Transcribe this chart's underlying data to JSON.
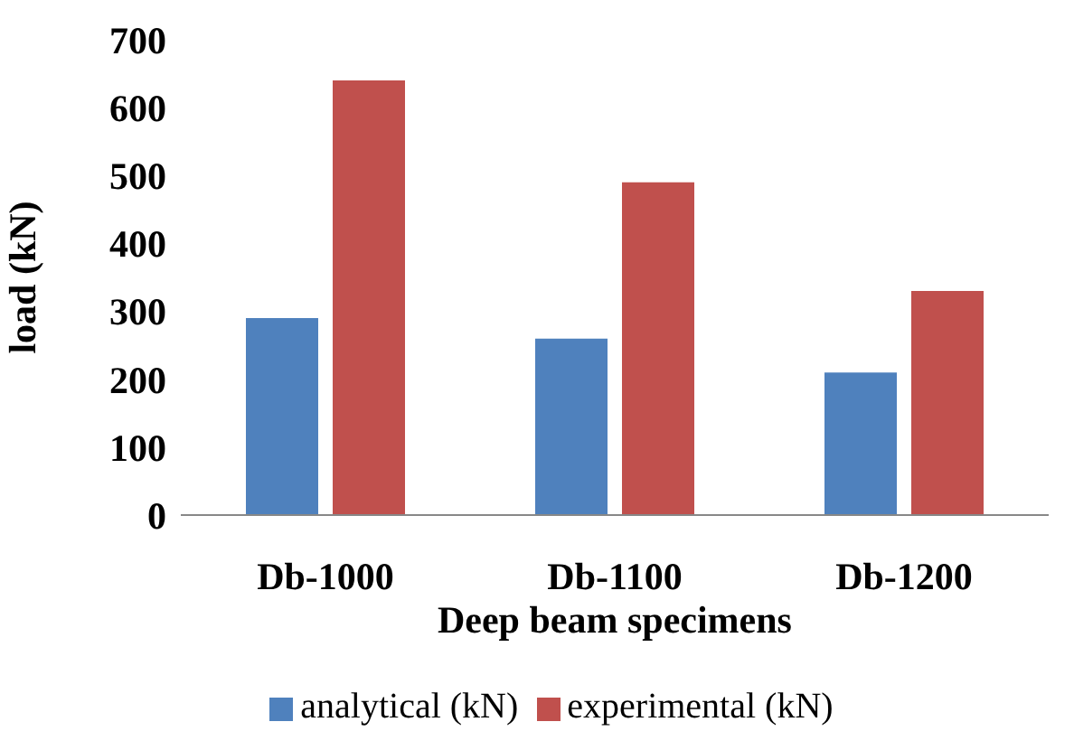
{
  "chart_data": {
    "type": "bar",
    "xlabel": "Deep beam specimens",
    "ylabel": "load (kN)",
    "categories": [
      "Db-1000",
      "Db-1100",
      "Db-1200"
    ],
    "series": [
      {
        "name": "analytical (kN)",
        "color": "#4f81bd",
        "values": [
          290,
          260,
          210
        ]
      },
      {
        "name": "experimental (kN)",
        "color": "#c0504d",
        "values": [
          640,
          490,
          330
        ]
      }
    ],
    "ylim": [
      0,
      700
    ],
    "yticks": [
      0,
      100,
      200,
      300,
      400,
      500,
      600,
      700
    ],
    "legend": "bottom"
  }
}
